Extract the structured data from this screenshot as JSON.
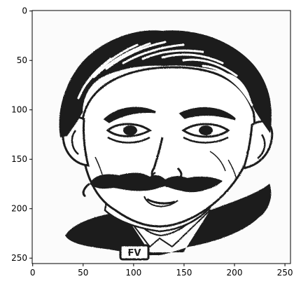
{
  "plot": {
    "x_ticks": [
      {
        "value": 0,
        "label": "0"
      },
      {
        "value": 50,
        "label": "50"
      },
      {
        "value": 100,
        "label": "100"
      },
      {
        "value": 150,
        "label": "150"
      },
      {
        "value": 200,
        "label": "200"
      },
      {
        "value": 250,
        "label": "250"
      }
    ],
    "y_ticks": [
      {
        "value": 0,
        "label": "0"
      },
      {
        "value": 50,
        "label": "50"
      },
      {
        "value": 100,
        "label": "100"
      },
      {
        "value": 150,
        "label": "150"
      },
      {
        "value": 200,
        "label": "200"
      },
      {
        "value": 250,
        "label": "250"
      }
    ],
    "image_extent": {
      "x": [
        0,
        256
      ],
      "y": [
        0,
        256
      ]
    },
    "y_axis_inverted": true
  },
  "illustration": {
    "subject": "ink-drawing-portrait-man-with-moustache",
    "collar_tag_text": "FV"
  }
}
